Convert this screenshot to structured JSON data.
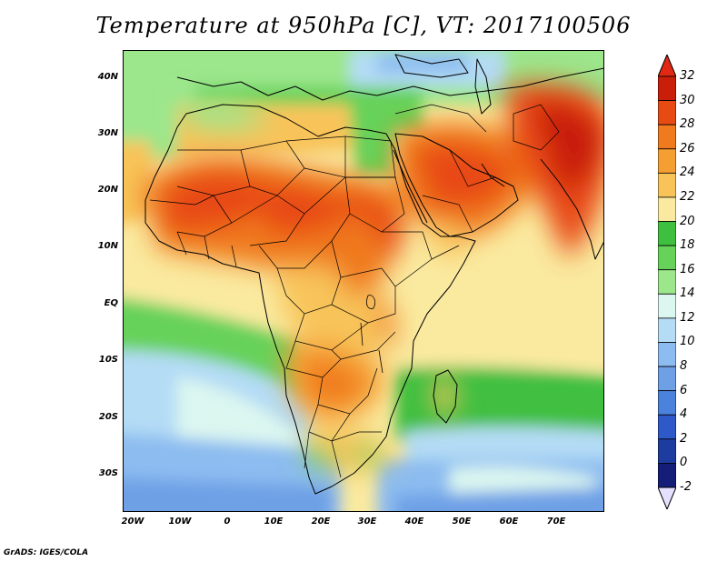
{
  "title": "Temperature at 950hPa [C], VT: 2017100506",
  "credit": "GrADS: IGES/COLA",
  "map": {
    "lon_range": [
      -23,
      80
    ],
    "lat_range": [
      -37,
      45
    ],
    "lat_ticks": [
      "40N",
      "30N",
      "20N",
      "10N",
      "EQ",
      "10S",
      "20S",
      "30S"
    ],
    "lon_ticks": [
      "20W",
      "10W",
      "0",
      "10E",
      "20E",
      "30E",
      "40E",
      "50E",
      "60E",
      "70E"
    ]
  },
  "colorbar": {
    "levels": [
      "32",
      "30",
      "28",
      "26",
      "24",
      "22",
      "20",
      "18",
      "16",
      "14",
      "12",
      "10",
      "8",
      "6",
      "4",
      "2",
      "0",
      "-2"
    ],
    "colors": [
      "#c81e0a",
      "#e84a14",
      "#f07a1e",
      "#f59e32",
      "#f8c45a",
      "#faeaa0",
      "#3fbf3f",
      "#66d25a",
      "#9ce68c",
      "#dcf7f0",
      "#b4dcf5",
      "#8cbcf0",
      "#6ea0e6",
      "#4b82dc",
      "#2d5ac8",
      "#1e3ca0",
      "#141e78"
    ],
    "top_color": "#e02814",
    "bottom_color": "#e6e0ff"
  }
}
